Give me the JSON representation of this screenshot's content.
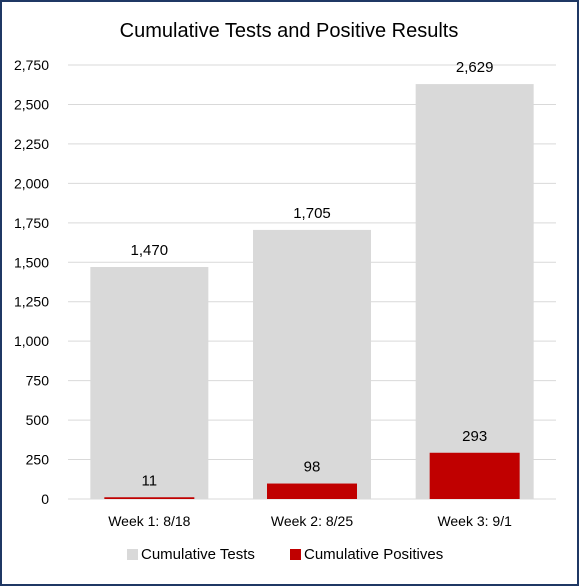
{
  "chart_data": {
    "type": "bar",
    "title": "Cumulative Tests and Positive Results",
    "categories": [
      "Week 1: 8/18",
      "Week 2: 8/25",
      "Week 3: 9/1"
    ],
    "series": [
      {
        "name": "Cumulative Tests",
        "values": [
          1470,
          1705,
          2629
        ],
        "labels": [
          "1,470",
          "1,705",
          "2,629"
        ],
        "color": "#d9d9d9"
      },
      {
        "name": "Cumulative Positives",
        "values": [
          11,
          98,
          293
        ],
        "labels": [
          "11",
          "98",
          "293"
        ],
        "color": "#c00000"
      }
    ],
    "ylim": [
      0,
      2750
    ],
    "yticks": [
      0,
      250,
      500,
      750,
      1000,
      1250,
      1500,
      1750,
      2000,
      2250,
      2500,
      2750
    ],
    "ytick_labels": [
      "0",
      "250",
      "500",
      "750",
      "1,000",
      "1,250",
      "1,500",
      "1,750",
      "2,000",
      "2,250",
      "2,500",
      "2,750"
    ],
    "grid": true,
    "legend": "bottom",
    "gridline_color": "#d9d9d9"
  }
}
